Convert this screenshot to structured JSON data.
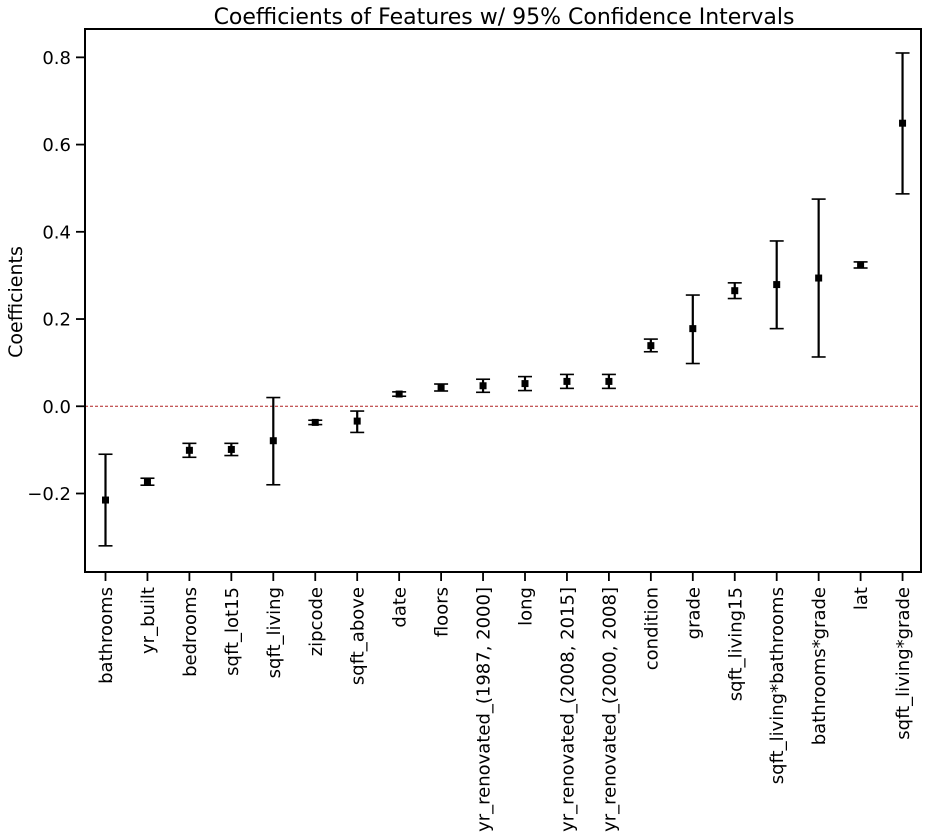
{
  "chart_data": {
    "type": "errorbar",
    "title": "Coefficients of Features w/ 95% Confidence Intervals",
    "xlabel": "",
    "ylabel": "Coefficients",
    "ylim": [
      -0.38,
      0.865
    ],
    "y_ticks": [
      -0.2,
      0.0,
      0.2,
      0.4,
      0.6,
      0.8
    ],
    "y_tick_labels": [
      "−0.2",
      "0.0",
      "0.2",
      "0.4",
      "0.6",
      "0.8"
    ],
    "grid": false,
    "reference_line": {
      "y": 0.0,
      "color": "#b22222",
      "style": "dashed"
    },
    "marker_color": "#000000",
    "categories": [
      "bathrooms",
      "yr_built",
      "bedrooms",
      "sqft_lot15",
      "sqft_living",
      "zipcode",
      "sqft_above",
      "date",
      "floors",
      "yr_renovated_(1987, 2000]",
      "long",
      "yr_renovated_(2008, 2015]",
      "yr_renovated_(2000, 2008]",
      "condition",
      "grade",
      "sqft_living15",
      "sqft_living*bathrooms",
      "bathrooms*grade",
      "lat",
      "sqft_living*grade"
    ],
    "series": [
      {
        "values": [
          -0.215,
          -0.173,
          -0.101,
          -0.099,
          -0.079,
          -0.037,
          -0.034,
          0.028,
          0.043,
          0.047,
          0.052,
          0.057,
          0.057,
          0.139,
          0.178,
          0.265,
          0.279,
          0.294,
          0.324,
          0.649
        ],
        "lower": [
          -0.32,
          -0.181,
          -0.117,
          -0.113,
          -0.18,
          -0.042,
          -0.06,
          0.023,
          0.035,
          0.032,
          0.036,
          0.041,
          0.041,
          0.125,
          0.098,
          0.247,
          0.178,
          0.113,
          0.317,
          0.487
        ],
        "upper": [
          -0.11,
          -0.165,
          -0.085,
          -0.085,
          0.02,
          -0.032,
          -0.011,
          0.033,
          0.051,
          0.062,
          0.068,
          0.073,
          0.073,
          0.154,
          0.255,
          0.283,
          0.379,
          0.475,
          0.331,
          0.81
        ]
      }
    ]
  }
}
